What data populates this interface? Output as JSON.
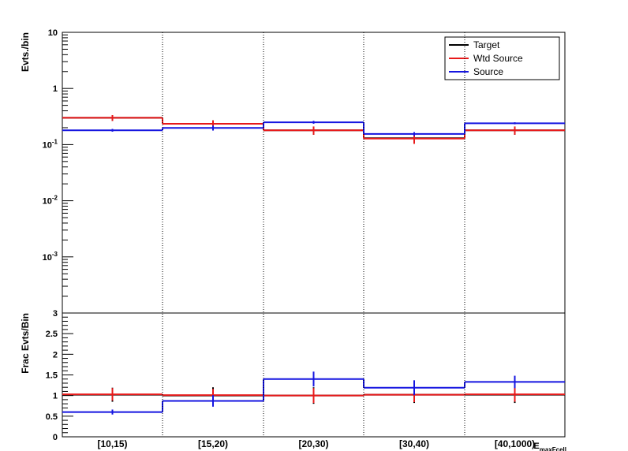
{
  "chart_data": [
    {
      "type": "line",
      "ylabel": "Evts./bin",
      "yscale": "log",
      "ylim": [
        0.0001,
        10
      ],
      "y_tick_labels": [
        "10",
        "1",
        "10-1",
        "10-2",
        "10-3"
      ],
      "grid": "vertical dotted at bin edges",
      "legend_position": "top-right",
      "categories": [
        "[10,15)",
        "[15,20)",
        "[20,30)",
        "[30,40)",
        "[40,1000)"
      ],
      "series": [
        {
          "name": "Target",
          "color": "#000000",
          "values": [
            0.3,
            0.235,
            0.18,
            0.13,
            0.18
          ],
          "errors": [
            0.035,
            0.035,
            0.03,
            0.025,
            0.03
          ]
        },
        {
          "name": "Wtd Source",
          "color": "#e8191a",
          "values": [
            0.3,
            0.235,
            0.18,
            0.128,
            0.18
          ],
          "errors": [
            0.035,
            0.035,
            0.03,
            0.025,
            0.03
          ]
        },
        {
          "name": "Source",
          "color": "#1515e0",
          "values": [
            0.18,
            0.198,
            0.25,
            0.155,
            0.24
          ],
          "errors": [
            0.01,
            0.02,
            0.015,
            0.012,
            0.01
          ]
        }
      ]
    },
    {
      "type": "line",
      "ylabel": "Frac Evts/Bin",
      "xlabel": "E_maxFcell",
      "ylim": [
        0,
        3
      ],
      "y_ticks": [
        0,
        0.5,
        1,
        1.5,
        2,
        2.5,
        3
      ],
      "y_tick_labels": [
        "0",
        "0.5",
        "1",
        "1.5",
        "2",
        "2.5",
        "3"
      ],
      "categories": [
        "[10,15)",
        "[15,20)",
        "[20,30)",
        "[30,40)",
        "[40,1000)"
      ],
      "series": [
        {
          "name": "Target",
          "color": "#000000",
          "values": [
            1.02,
            1.0,
            1.0,
            1.02,
            1.02
          ],
          "errors": [
            0.17,
            0.2,
            0.2,
            0.2,
            0.2
          ]
        },
        {
          "name": "Wtd Source",
          "color": "#e8191a",
          "values": [
            1.03,
            1.01,
            1.0,
            1.02,
            1.03
          ],
          "errors": [
            0.15,
            0.15,
            0.18,
            0.18,
            0.18
          ]
        },
        {
          "name": "Source",
          "color": "#1515e0",
          "values": [
            0.6,
            0.87,
            1.4,
            1.19,
            1.33
          ],
          "errors": [
            0.06,
            0.14,
            0.18,
            0.18,
            0.15
          ]
        }
      ]
    }
  ]
}
